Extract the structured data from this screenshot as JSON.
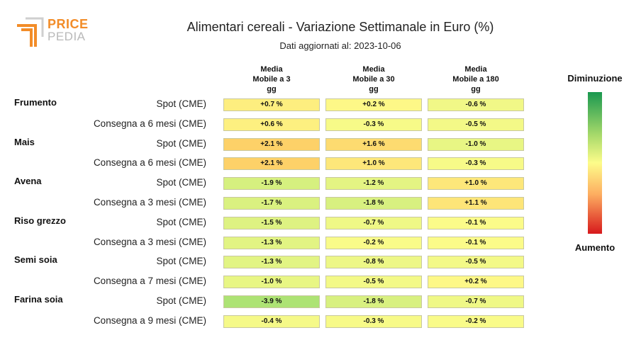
{
  "brand": {
    "price": "PRICE",
    "pedia": "PEDIA"
  },
  "chart_data": {
    "type": "table",
    "title": "Alimentari cereali - Variazione Settimanale in Euro (%)",
    "subtitle": "Dati aggiornati al: 2023-10-06",
    "columns": [
      [
        "Media",
        "Mobile a 3",
        "gg"
      ],
      [
        "Media",
        "Mobile a 30",
        "gg"
      ],
      [
        "Media",
        "Mobile a 180",
        "gg"
      ]
    ],
    "legend": {
      "top": "Diminuzione",
      "bottom": "Aumento",
      "colors": [
        "#1a9850",
        "#a6d96a",
        "#fdfc8a",
        "#fdae61",
        "#d7191c"
      ]
    },
    "groups": [
      {
        "name": "Frumento",
        "rows": [
          {
            "label": "Spot (CME)",
            "values": [
              0.7,
              0.2,
              -0.6
            ],
            "text": [
              "+0.7 %",
              "+0.2 %",
              "-0.6 %"
            ]
          },
          {
            "label": "Consegna a 6 mesi (CME)",
            "values": [
              0.6,
              -0.3,
              -0.5
            ],
            "text": [
              "+0.6 %",
              "-0.3 %",
              "-0.5 %"
            ]
          }
        ]
      },
      {
        "name": "Mais",
        "rows": [
          {
            "label": "Spot (CME)",
            "values": [
              2.1,
              1.6,
              -1.0
            ],
            "text": [
              "+2.1 %",
              "+1.6 %",
              "-1.0 %"
            ]
          },
          {
            "label": "Consegna a 6 mesi (CME)",
            "values": [
              2.1,
              1.0,
              -0.3
            ],
            "text": [
              "+2.1 %",
              "+1.0 %",
              "-0.3 %"
            ]
          }
        ]
      },
      {
        "name": "Avena",
        "rows": [
          {
            "label": "Spot (CME)",
            "values": [
              -1.9,
              -1.2,
              1.0
            ],
            "text": [
              "-1.9 %",
              "-1.2 %",
              "+1.0 %"
            ]
          },
          {
            "label": "Consegna a 3 mesi (CME)",
            "values": [
              -1.7,
              -1.8,
              1.1
            ],
            "text": [
              "-1.7 %",
              "-1.8 %",
              "+1.1 %"
            ]
          }
        ]
      },
      {
        "name": "Riso grezzo",
        "rows": [
          {
            "label": "Spot (CME)",
            "values": [
              -1.5,
              -0.7,
              -0.1
            ],
            "text": [
              "-1.5 %",
              "-0.7 %",
              "-0.1 %"
            ]
          },
          {
            "label": "Consegna a 3 mesi (CME)",
            "values": [
              -1.3,
              -0.2,
              -0.1
            ],
            "text": [
              "-1.3 %",
              "-0.2 %",
              "-0.1 %"
            ]
          }
        ]
      },
      {
        "name": "Semi soia",
        "rows": [
          {
            "label": "Spot (CME)",
            "values": [
              -1.3,
              -0.8,
              -0.5
            ],
            "text": [
              "-1.3 %",
              "-0.8 %",
              "-0.5 %"
            ]
          },
          {
            "label": "Consegna a 7 mesi (CME)",
            "values": [
              -1.0,
              -0.5,
              0.2
            ],
            "text": [
              "-1.0 %",
              "-0.5 %",
              "+0.2 %"
            ]
          }
        ]
      },
      {
        "name": "Farina soia",
        "rows": [
          {
            "label": "Spot (CME)",
            "values": [
              -3.9,
              -1.8,
              -0.7
            ],
            "text": [
              "-3.9 %",
              "-1.8 %",
              "-0.7 %"
            ]
          },
          {
            "label": "Consegna a 9 mesi (CME)",
            "values": [
              -0.4,
              -0.3,
              -0.2
            ],
            "text": [
              "-0.4 %",
              "-0.3 %",
              "-0.2 %"
            ]
          }
        ]
      }
    ]
  }
}
